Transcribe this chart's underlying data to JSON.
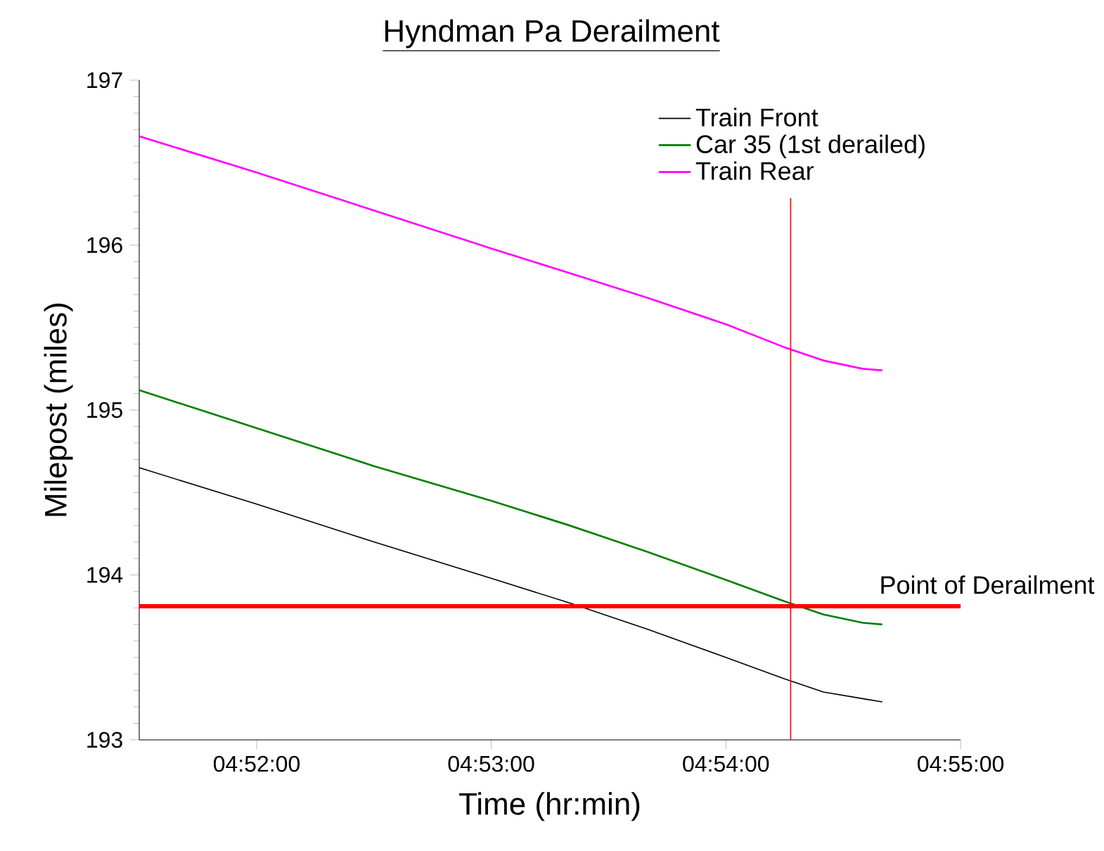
{
  "chart_data": {
    "type": "line",
    "title": "Hyndman Pa Derailment",
    "xlabel": "Time (hr:min)",
    "ylabel": "Milepost (miles)",
    "x": [
      4.85833,
      4.86667,
      4.875,
      4.88333,
      4.88889,
      4.89444,
      4.9,
      4.90417,
      4.90694,
      4.90972,
      4.91111
    ],
    "series": [
      {
        "name": "Train Front",
        "color": "#000000",
        "values": [
          194.65,
          194.43,
          194.2,
          193.98,
          193.83,
          193.67,
          193.5,
          193.37,
          193.29,
          193.25,
          193.23
        ]
      },
      {
        "name": "Car 35 (1st derailed)",
        "color": "#008000",
        "values": [
          195.12,
          194.89,
          194.66,
          194.45,
          194.3,
          194.14,
          193.97,
          193.84,
          193.76,
          193.71,
          193.7
        ]
      },
      {
        "name": "Train Rear",
        "color": "#ff00ff",
        "values": [
          196.66,
          196.44,
          196.21,
          195.98,
          195.83,
          195.68,
          195.52,
          195.38,
          195.3,
          195.25,
          195.24
        ]
      }
    ],
    "xlim": [
      4.85833,
      4.91667
    ],
    "ylim": [
      193,
      197
    ],
    "xticks": [
      {
        "value": 4.86667,
        "label": "04:52:00"
      },
      {
        "value": 4.88333,
        "label": "04:53:00"
      },
      {
        "value": 4.9,
        "label": "04:54:00"
      },
      {
        "value": 4.91667,
        "label": "04:55:00"
      }
    ],
    "yticks": [
      193,
      194,
      195,
      196,
      197
    ],
    "ref_lines": [
      {
        "axis": "y",
        "value": 193.81,
        "label": "Point of Derailment",
        "color": "#ff0000"
      },
      {
        "axis": "x",
        "value": 4.9046,
        "color": "#ff0000"
      }
    ],
    "legend": "top right",
    "marker": "none",
    "line_style": "solid"
  }
}
